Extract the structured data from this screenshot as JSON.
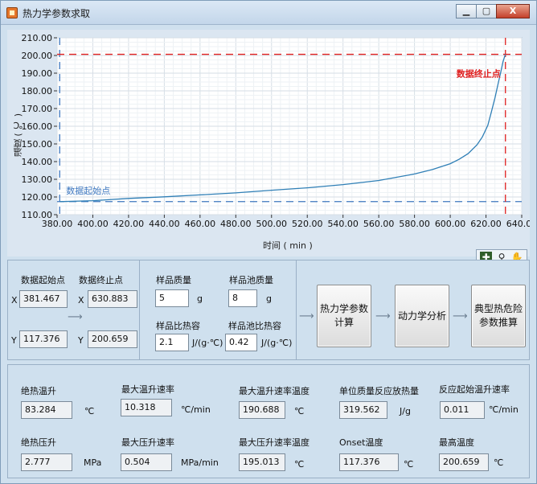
{
  "window": {
    "title": "热力学参数求取",
    "min_label": "▁",
    "max_label": "▢",
    "close_label": "X"
  },
  "chart_data": {
    "type": "line",
    "xlabel": "时间 ( min )",
    "ylabel": "温度 ( ℃ )",
    "xlim": [
      380,
      640
    ],
    "ylim": [
      110,
      210
    ],
    "x_ticks": [
      "380.00",
      "400.00",
      "420.00",
      "440.00",
      "460.00",
      "480.00",
      "500.00",
      "520.00",
      "540.00",
      "560.00",
      "580.00",
      "600.00",
      "620.00",
      "640.00"
    ],
    "y_ticks": [
      "210.00",
      "200.00",
      "190.00",
      "180.00",
      "170.00",
      "160.00",
      "150.00",
      "140.00",
      "130.00",
      "120.00",
      "110.00"
    ],
    "grid": true,
    "series": [
      {
        "color": "#2f7fb6",
        "x": [
          381.467,
          400,
          420,
          440,
          460,
          480,
          500,
          520,
          540,
          560,
          580,
          590,
          600,
          605,
          610,
          615,
          618,
          621,
          623,
          625,
          627,
          628.5,
          629.5,
          630.883
        ],
        "y": [
          117.376,
          117.9,
          119.2,
          120.1,
          121.2,
          122.3,
          123.8,
          125.2,
          127.0,
          129.3,
          133.0,
          135.5,
          138.8,
          141.3,
          144.5,
          149.5,
          154.0,
          160.5,
          168.0,
          176.0,
          185.0,
          191.5,
          196.5,
          200.659
        ]
      }
    ],
    "annotations": [
      {
        "text": "数据起始点",
        "color": "#3f78c0",
        "x": 381.467,
        "y": 117.376
      },
      {
        "text": "数据终止点",
        "color": "#e02020",
        "x": 630.883,
        "y": 200.659
      }
    ],
    "reference_lines": {
      "color_start": "#3f78c0",
      "color_end": "#e02020"
    }
  },
  "plot_tools": {
    "cursor_icon": "crosshair-icon",
    "zoom_icon": "zoom-icon",
    "pan_icon": "hand-pan-icon"
  },
  "selection": {
    "start_label": "数据起始点",
    "end_label": "数据终止点",
    "x_prefix": "X",
    "y_prefix": "Y",
    "start_x": "381.467",
    "start_y": "117.376",
    "end_x": "630.883",
    "end_y": "200.659"
  },
  "sample": {
    "mass_label": "样品质量",
    "mass_value": "5",
    "mass_unit": "g",
    "cell_mass_label": "样品池质量",
    "cell_mass_value": "8",
    "cell_mass_unit": "g",
    "cp_label": "样品比热容",
    "cp_value": "2.1",
    "cp_unit": "J/(g·℃)",
    "cell_cp_label": "样品池比热容",
    "cell_cp_value": "0.42",
    "cell_cp_unit": "J/(g·℃)"
  },
  "actions": {
    "thermo_calc": "热力学参数\n计算",
    "kinetics": "动力学分析",
    "hazard": "典型热危险\n参数推算"
  },
  "results": {
    "adiabatic_temp_rise_label": "绝热温升",
    "adiabatic_temp_rise_value": "83.284",
    "adiabatic_temp_rise_unit": "℃",
    "max_temp_rate_label": "最大温升速率",
    "max_temp_rate_value": "10.318",
    "max_temp_rate_unit": "℃/min",
    "max_rate_temp_label": "最大温升速率温度",
    "max_rate_temp_value": "190.688",
    "max_rate_temp_unit": "℃",
    "heat_per_mass_label": "单位质量反应放热量",
    "heat_per_mass_value": "319.562",
    "heat_per_mass_unit": "J/g",
    "onset_rate_label": "反应起始温升速率",
    "onset_rate_value": "0.011",
    "onset_rate_unit": "℃/min",
    "adiabatic_press_rise_label": "绝热压升",
    "adiabatic_press_rise_value": "2.777",
    "adiabatic_press_rise_unit": "MPa",
    "max_press_rate_label": "最大压升速率",
    "max_press_rate_value": "0.504",
    "max_press_rate_unit": "MPa/min",
    "max_press_rate_temp_label": "最大压升速率温度",
    "max_press_rate_temp_value": "195.013",
    "max_press_rate_temp_unit": "℃",
    "onset_temp_label": "Onset温度",
    "onset_temp_value": "117.376",
    "onset_temp_unit": "℃",
    "max_temp_label": "最高温度",
    "max_temp_value": "200.659",
    "max_temp_unit": "℃"
  }
}
